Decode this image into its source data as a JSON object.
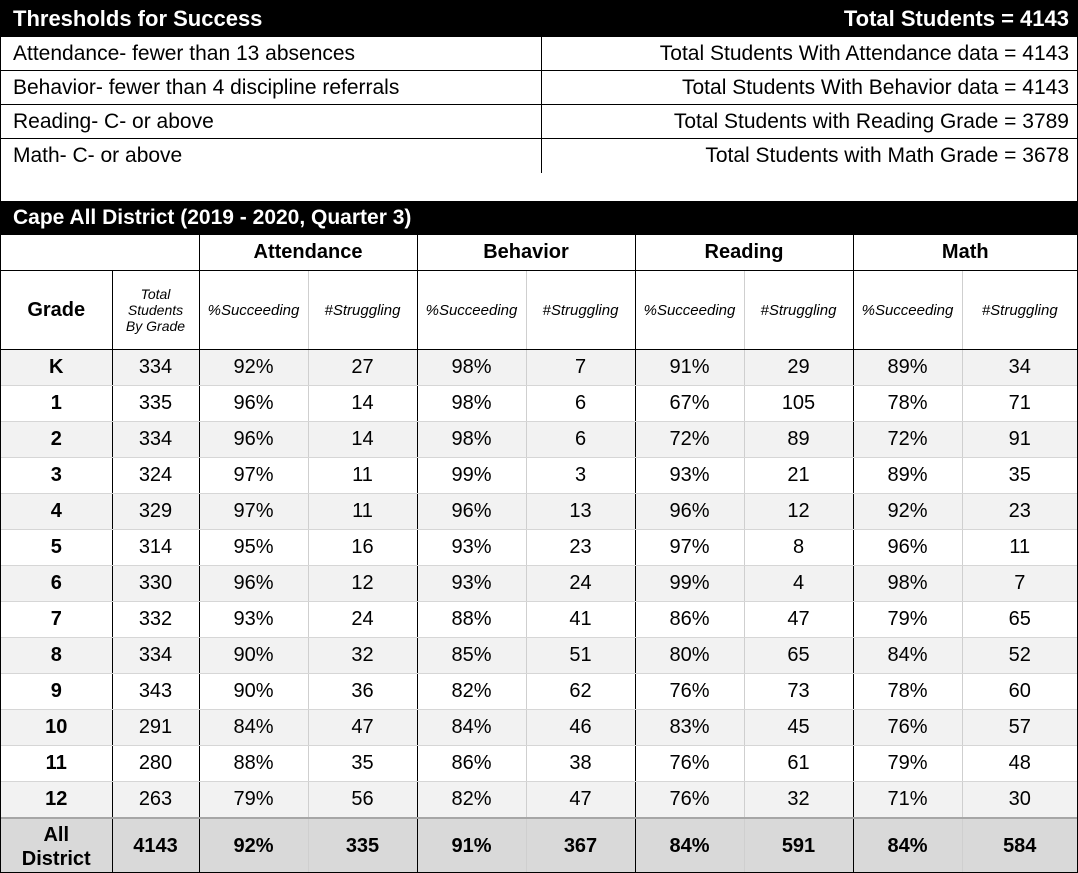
{
  "thresholds": {
    "title": "Thresholds for Success",
    "total_students": "Total Students = 4143",
    "rows": [
      {
        "label": "Attendance- fewer than 13 absences",
        "total": "Total Students With Attendance data = 4143"
      },
      {
        "label": "Behavior- fewer than 4 discipline referrals",
        "total": "Total Students With Behavior data = 4143"
      },
      {
        "label": "Reading- C- or above",
        "total": "Total Students with Reading Grade = 3789"
      },
      {
        "label": "Math- C- or above",
        "total": "Total Students with Math Grade = 3678"
      }
    ]
  },
  "district": {
    "title": "Cape All District (2019 - 2020, Quarter 3)",
    "group_headers": [
      "Attendance",
      "Behavior",
      "Reading",
      "Math"
    ],
    "grade_header": "Grade",
    "total_header_lines": [
      "Total",
      "Students",
      "By Grade"
    ],
    "sub_headers": [
      "%Succeeding",
      "#Struggling",
      "%Succeeding",
      "#Struggling",
      "%Succeeding",
      "#Struggling",
      "%Succeeding",
      "#Struggling"
    ],
    "rows": [
      [
        "K",
        "334",
        "92%",
        "27",
        "98%",
        "7",
        "91%",
        "29",
        "89%",
        "34"
      ],
      [
        "1",
        "335",
        "96%",
        "14",
        "98%",
        "6",
        "67%",
        "105",
        "78%",
        "71"
      ],
      [
        "2",
        "334",
        "96%",
        "14",
        "98%",
        "6",
        "72%",
        "89",
        "72%",
        "91"
      ],
      [
        "3",
        "324",
        "97%",
        "11",
        "99%",
        "3",
        "93%",
        "21",
        "89%",
        "35"
      ],
      [
        "4",
        "329",
        "97%",
        "11",
        "96%",
        "13",
        "96%",
        "12",
        "92%",
        "23"
      ],
      [
        "5",
        "314",
        "95%",
        "16",
        "93%",
        "23",
        "97%",
        "8",
        "96%",
        "11"
      ],
      [
        "6",
        "330",
        "96%",
        "12",
        "93%",
        "24",
        "99%",
        "4",
        "98%",
        "7"
      ],
      [
        "7",
        "332",
        "93%",
        "24",
        "88%",
        "41",
        "86%",
        "47",
        "79%",
        "65"
      ],
      [
        "8",
        "334",
        "90%",
        "32",
        "85%",
        "51",
        "80%",
        "65",
        "84%",
        "52"
      ],
      [
        "9",
        "343",
        "90%",
        "36",
        "82%",
        "62",
        "76%",
        "73",
        "78%",
        "60"
      ],
      [
        "10",
        "291",
        "84%",
        "47",
        "84%",
        "46",
        "83%",
        "45",
        "76%",
        "57"
      ],
      [
        "11",
        "280",
        "88%",
        "35",
        "86%",
        "38",
        "76%",
        "61",
        "79%",
        "48"
      ],
      [
        "12",
        "263",
        "79%",
        "56",
        "82%",
        "47",
        "76%",
        "32",
        "71%",
        "30"
      ]
    ],
    "footer": {
      "label_lines": [
        "All",
        "District"
      ],
      "values": [
        "4143",
        "92%",
        "335",
        "91%",
        "367",
        "84%",
        "591",
        "84%",
        "584"
      ]
    }
  }
}
